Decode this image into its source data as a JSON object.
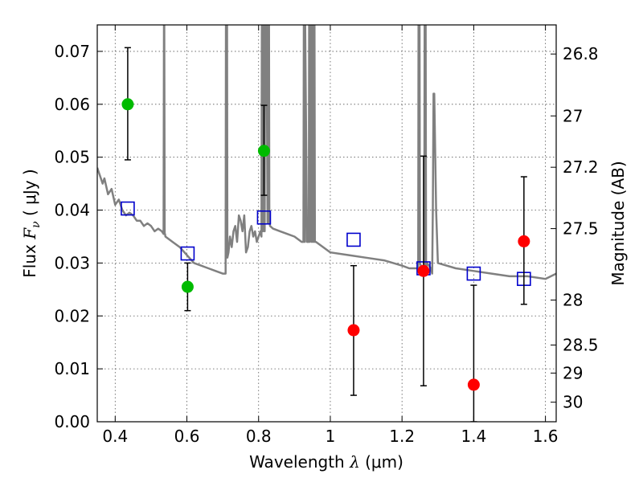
{
  "chart_data": {
    "type": "scatter",
    "xlabel": {
      "prefix": "Wavelength",
      "symbol": "λ",
      "unit": "(μm)"
    },
    "ylabel": {
      "prefix": "Flux",
      "symbol": "F",
      "subscript": "ν",
      "unit": "( μJy )"
    },
    "y2label": "Magnitude (AB)",
    "xlim": [
      0.35,
      1.63
    ],
    "ylim": [
      0.0,
      0.075
    ],
    "grid": true,
    "x_ticks": [
      0.4,
      0.6,
      0.8,
      1.0,
      1.2,
      1.4,
      1.6
    ],
    "x_tick_labels": [
      "0.4",
      "0.6",
      "0.8",
      "1",
      "1.2",
      "1.4",
      "1.6"
    ],
    "y_ticks": [
      0.0,
      0.01,
      0.02,
      0.03,
      0.04,
      0.05,
      0.06,
      0.07
    ],
    "y_tick_labels": [
      "0.00",
      "0.01",
      "0.02",
      "0.03",
      "0.04",
      "0.05",
      "0.06",
      "0.07"
    ],
    "y2_ticks": [
      {
        "label": "26.8",
        "flux": 0.0695
      },
      {
        "label": "27",
        "flux": 0.0578
      },
      {
        "label": "27.2",
        "flux": 0.0481
      },
      {
        "label": "27.5",
        "flux": 0.0365
      },
      {
        "label": "28",
        "flux": 0.023
      },
      {
        "label": "28.5",
        "flux": 0.0145
      },
      {
        "label": "29",
        "flux": 0.0092
      },
      {
        "label": "30",
        "flux": 0.0037
      }
    ],
    "series": [
      {
        "kind": "line",
        "color": "#808080",
        "x": [
          0.35,
          0.355,
          0.36,
          0.365,
          0.37,
          0.38,
          0.39,
          0.4,
          0.41,
          0.42,
          0.43,
          0.44,
          0.45,
          0.46,
          0.47,
          0.48,
          0.49,
          0.5,
          0.51,
          0.52,
          0.53,
          0.535,
          0.536,
          0.537,
          0.538,
          0.539,
          0.54,
          0.55,
          0.56,
          0.58,
          0.6,
          0.62,
          0.64,
          0.66,
          0.68,
          0.7,
          0.705,
          0.708,
          0.709,
          0.71,
          0.711,
          0.712,
          0.713,
          0.716,
          0.72,
          0.725,
          0.73,
          0.735,
          0.74,
          0.745,
          0.75,
          0.755,
          0.76,
          0.765,
          0.77,
          0.775,
          0.78,
          0.785,
          0.79,
          0.795,
          0.8,
          0.805,
          0.808,
          0.809,
          0.81,
          0.811,
          0.812,
          0.813,
          0.814,
          0.815,
          0.817,
          0.818,
          0.819,
          0.82,
          0.821,
          0.822,
          0.825,
          0.826,
          0.827,
          0.828,
          0.829,
          0.83,
          0.832,
          0.84,
          0.86,
          0.88,
          0.9,
          0.92,
          0.925,
          0.926,
          0.927,
          0.928,
          0.929,
          0.93,
          0.935,
          0.94,
          0.941,
          0.942,
          0.943,
          0.944,
          0.945,
          0.946,
          0.947,
          0.948,
          0.949,
          0.95,
          0.951,
          0.952,
          0.953,
          0.954,
          0.955,
          0.956,
          0.957,
          0.958,
          0.96,
          0.98,
          1.0,
          1.05,
          1.1,
          1.15,
          1.2,
          1.22,
          1.24,
          1.245,
          1.246,
          1.247,
          1.248,
          1.249,
          1.25,
          1.255,
          1.26,
          1.262,
          1.263,
          1.264,
          1.265,
          1.266,
          1.267,
          1.268,
          1.27,
          1.28,
          1.284,
          1.286,
          1.288,
          1.29,
          1.295,
          1.3,
          1.35,
          1.4,
          1.45,
          1.5,
          1.55,
          1.6,
          1.63
        ],
        "y": [
          0.048,
          0.047,
          0.046,
          0.045,
          0.046,
          0.043,
          0.044,
          0.041,
          0.042,
          0.04,
          0.039,
          0.0395,
          0.039,
          0.038,
          0.038,
          0.037,
          0.0375,
          0.037,
          0.036,
          0.0365,
          0.036,
          0.0355,
          0.075,
          0.075,
          0.0355,
          0.0355,
          0.035,
          0.0345,
          0.034,
          0.033,
          0.0315,
          0.03,
          0.0295,
          0.029,
          0.0285,
          0.028,
          0.028,
          0.028,
          0.075,
          0.075,
          0.075,
          0.075,
          0.031,
          0.032,
          0.035,
          0.033,
          0.036,
          0.037,
          0.034,
          0.039,
          0.038,
          0.036,
          0.039,
          0.032,
          0.033,
          0.036,
          0.037,
          0.035,
          0.036,
          0.034,
          0.035,
          0.036,
          0.035,
          0.075,
          0.075,
          0.037,
          0.036,
          0.075,
          0.075,
          0.037,
          0.036,
          0.075,
          0.075,
          0.075,
          0.075,
          0.075,
          0.0375,
          0.075,
          0.075,
          0.075,
          0.075,
          0.038,
          0.037,
          0.0365,
          0.036,
          0.0355,
          0.035,
          0.034,
          0.034,
          0.075,
          0.075,
          0.034,
          0.034,
          0.075,
          0.034,
          0.034,
          0.075,
          0.075,
          0.034,
          0.075,
          0.075,
          0.075,
          0.075,
          0.034,
          0.034,
          0.075,
          0.075,
          0.075,
          0.034,
          0.034,
          0.075,
          0.075,
          0.034,
          0.034,
          0.034,
          0.033,
          0.032,
          0.0315,
          0.031,
          0.0305,
          0.0295,
          0.029,
          0.029,
          0.029,
          0.075,
          0.075,
          0.075,
          0.075,
          0.03,
          0.029,
          0.029,
          0.029,
          0.075,
          0.075,
          0.075,
          0.075,
          0.029,
          0.029,
          0.03,
          0.029,
          0.028,
          0.04,
          0.062,
          0.062,
          0.04,
          0.03,
          0.029,
          0.0285,
          0.028,
          0.0275,
          0.0275,
          0.027,
          0.028
        ]
      },
      {
        "kind": "squares",
        "color": "#0000cc",
        "x": [
          0.435,
          0.602,
          0.815,
          1.065,
          1.26,
          1.4,
          1.54
        ],
        "y": [
          0.0403,
          0.0318,
          0.0386,
          0.0344,
          0.029,
          0.028,
          0.027
        ]
      },
      {
        "kind": "points",
        "color": "#00bb00",
        "x": [
          0.435,
          0.602,
          0.815
        ],
        "y": [
          0.06,
          0.0255,
          0.0512
        ],
        "yerr_low": [
          0.0495,
          0.021,
          0.0428
        ],
        "yerr_high": [
          0.0707,
          0.03,
          0.0598
        ]
      },
      {
        "kind": "points",
        "color": "#ff0000",
        "x": [
          1.065,
          1.26,
          1.4,
          1.54
        ],
        "y": [
          0.0173,
          0.0285,
          0.007,
          0.0341
        ],
        "yerr_low": [
          0.005,
          0.0068,
          0.0,
          0.0222
        ],
        "yerr_high": [
          0.0295,
          0.0502,
          0.0258,
          0.0463
        ]
      }
    ]
  }
}
